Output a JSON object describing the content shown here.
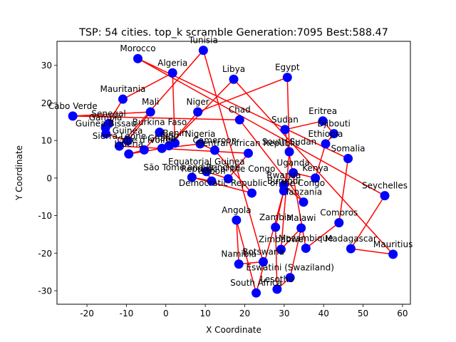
{
  "chart_data": {
    "type": "scatter",
    "title": "TSP: 54 cities. top_k scramble Generation:7095 Best:588.47",
    "xlabel": "X Coordinate",
    "ylabel": "Y Coordinate",
    "xlim": [
      -27.6,
      62.0
    ],
    "ylim": [
      -33.6,
      36.4
    ],
    "xticks": [
      -20,
      -10,
      0,
      10,
      20,
      30,
      40,
      50,
      60
    ],
    "yticks": [
      -30,
      -20,
      -10,
      0,
      10,
      20,
      30
    ],
    "grid": false,
    "route_color": "#ff0000",
    "point_color": "#0000ff",
    "cities": [
      {
        "name": "Morocco",
        "x": -7.1,
        "y": 31.8
      },
      {
        "name": "Algeria",
        "x": 1.7,
        "y": 28.0
      },
      {
        "name": "Tunisia",
        "x": 9.5,
        "y": 34.0
      },
      {
        "name": "Libya",
        "x": 17.2,
        "y": 26.3
      },
      {
        "name": "Egypt",
        "x": 30.8,
        "y": 26.8
      },
      {
        "name": "Mauritania",
        "x": -10.9,
        "y": 21.0
      },
      {
        "name": "Cabo Verde",
        "x": -23.6,
        "y": 16.5
      },
      {
        "name": "Mali",
        "x": -3.9,
        "y": 17.6
      },
      {
        "name": "Niger",
        "x": 8.1,
        "y": 17.6
      },
      {
        "name": "Chad",
        "x": 18.7,
        "y": 15.5
      },
      {
        "name": "Sudan",
        "x": 30.2,
        "y": 12.9
      },
      {
        "name": "Eritrea",
        "x": 39.8,
        "y": 15.2
      },
      {
        "name": "Djibouti",
        "x": 42.6,
        "y": 11.8
      },
      {
        "name": "Ethiopia",
        "x": 40.5,
        "y": 9.1
      },
      {
        "name": "Somalia",
        "x": 46.2,
        "y": 5.2
      },
      {
        "name": "Senegal",
        "x": -14.5,
        "y": 14.5
      },
      {
        "name": "Gambia",
        "x": -15.3,
        "y": 13.4
      },
      {
        "name": "Guinea-Bissau",
        "x": -15.2,
        "y": 11.8
      },
      {
        "name": "Guinea",
        "x": -9.7,
        "y": 9.9
      },
      {
        "name": "Sierra Leone",
        "x": -11.8,
        "y": 8.5
      },
      {
        "name": "Liberia",
        "x": -9.4,
        "y": 6.4
      },
      {
        "name": "Cote d'Ivoire",
        "x": -5.5,
        "y": 7.5
      },
      {
        "name": "Burkina Faso",
        "x": -1.6,
        "y": 12.2
      },
      {
        "name": "Ghana",
        "x": -1.0,
        "y": 7.9
      },
      {
        "name": "Togo",
        "x": 0.8,
        "y": 8.6
      },
      {
        "name": "Benin",
        "x": 2.3,
        "y": 9.3
      },
      {
        "name": "Nigeria",
        "x": 8.7,
        "y": 9.1
      },
      {
        "name": "Cameroon",
        "x": 12.4,
        "y": 7.4
      },
      {
        "name": "Central African Republic",
        "x": 20.9,
        "y": 6.6
      },
      {
        "name": "South Sudan",
        "x": 31.3,
        "y": 7.0
      },
      {
        "name": "Uganda",
        "x": 32.3,
        "y": 1.4
      },
      {
        "name": "Kenya",
        "x": 37.9,
        "y": 0.0
      },
      {
        "name": "Rwanda",
        "x": 29.9,
        "y": -1.9
      },
      {
        "name": "Burundi",
        "x": 29.9,
        "y": -3.4
      },
      {
        "name": "Tanzania",
        "x": 34.9,
        "y": -6.4
      },
      {
        "name": "Democratic Republic of the Congo",
        "x": 21.8,
        "y": -4.0
      },
      {
        "name": "Republic of the Congo",
        "x": 15.8,
        "y": -0.2
      },
      {
        "name": "Gabon",
        "x": 11.6,
        "y": -0.8
      },
      {
        "name": "Equatorial Guinea",
        "x": 10.3,
        "y": 1.7
      },
      {
        "name": "Sao Tome and Principe",
        "x": 6.6,
        "y": 0.2
      },
      {
        "name": "Angola",
        "x": 17.9,
        "y": -11.2
      },
      {
        "name": "Namibia",
        "x": 18.5,
        "y": -22.9
      },
      {
        "name": "Zambia",
        "x": 27.8,
        "y": -13.1
      },
      {
        "name": "Malawi",
        "x": 34.3,
        "y": -13.3
      },
      {
        "name": "Mozambique",
        "x": 35.5,
        "y": -18.7
      },
      {
        "name": "Zimbabwe",
        "x": 29.2,
        "y": -19.0
      },
      {
        "name": "Botswana",
        "x": 24.7,
        "y": -22.3
      },
      {
        "name": "Eswatini",
        "x": 31.5,
        "y": -26.5
      },
      {
        "name": "Lesotho",
        "x": 28.2,
        "y": -29.6
      },
      {
        "name": "South Africa",
        "x": 22.9,
        "y": -30.6
      },
      {
        "name": "Comoros",
        "x": 43.9,
        "y": -11.9
      },
      {
        "name": "Madagascar",
        "x": 46.9,
        "y": -18.8
      },
      {
        "name": "Mauritius",
        "x": 57.6,
        "y": -20.3
      },
      {
        "name": "Seychelles",
        "x": 55.5,
        "y": -4.7
      }
    ],
    "route_order": [
      0,
      53,
      51,
      52,
      3,
      24,
      8,
      4,
      29,
      45,
      43,
      47,
      48,
      42,
      33,
      49,
      40,
      41,
      46,
      2,
      19,
      28,
      36,
      38,
      37,
      39,
      35,
      27,
      26,
      23,
      20,
      21,
      22,
      25,
      1,
      5,
      16,
      15,
      17,
      18,
      7,
      6,
      9,
      34,
      32,
      30,
      31,
      13,
      12,
      11,
      10,
      44,
      50,
      14,
      0
    ],
    "labels": [
      {
        "city": 0,
        "text": "Morocco"
      },
      {
        "city": 1,
        "text": "Algeria"
      },
      {
        "city": 2,
        "text": "Tunisia"
      },
      {
        "city": 3,
        "text": "Libya"
      },
      {
        "city": 4,
        "text": "Egypt"
      },
      {
        "city": 5,
        "text": "Mauritania"
      },
      {
        "city": 6,
        "text": "Cabo Verde"
      },
      {
        "city": 7,
        "text": "Mali"
      },
      {
        "city": 8,
        "text": "Niger"
      },
      {
        "city": 9,
        "text": "Chad"
      },
      {
        "city": 10,
        "text": "Sudan"
      },
      {
        "city": 11,
        "text": "Eritrea"
      },
      {
        "city": 12,
        "text": "Djibouti"
      },
      {
        "city": 13,
        "text": "Ethiopia"
      },
      {
        "city": 14,
        "text": "Somalia"
      },
      {
        "city": 15,
        "text": "Senegal"
      },
      {
        "city": 16,
        "text": "Gambia"
      },
      {
        "city": 17,
        "text": "Guinea-Bissau"
      },
      {
        "city": 18,
        "text": "Guinea"
      },
      {
        "city": 19,
        "text": "Sierra Leone"
      },
      {
        "city": 20,
        "text": "Liberia"
      },
      {
        "city": 21,
        "text": "Côte d'Ivoire"
      },
      {
        "city": 22,
        "text": "Burkina Faso"
      },
      {
        "city": 23,
        "text": "Ghana"
      },
      {
        "city": 24,
        "text": "Togo"
      },
      {
        "city": 25,
        "text": "Benin"
      },
      {
        "city": 26,
        "text": "Nigeria"
      },
      {
        "city": 27,
        "text": "Cameroon"
      },
      {
        "city": 28,
        "text": "Central African Republic"
      },
      {
        "city": 29,
        "text": "South Sudan"
      },
      {
        "city": 30,
        "text": "Uganda"
      },
      {
        "city": 31,
        "text": "Kenya"
      },
      {
        "city": 32,
        "text": "Rwanda"
      },
      {
        "city": 33,
        "text": "Burundi"
      },
      {
        "city": 34,
        "text": "Tanzania"
      },
      {
        "city": 35,
        "text": "Democratic Republic of the Congo"
      },
      {
        "city": 36,
        "text": "Republic of the Congo"
      },
      {
        "city": 37,
        "text": "Gabon"
      },
      {
        "city": 38,
        "text": "Equatorial Guinea"
      },
      {
        "city": 39,
        "text": "São Tomé and Príncipe"
      },
      {
        "city": 40,
        "text": "Angola"
      },
      {
        "city": 41,
        "text": "Namibia"
      },
      {
        "city": 42,
        "text": "Zambia"
      },
      {
        "city": 43,
        "text": "Malawi"
      },
      {
        "city": 44,
        "text": "Mozambique"
      },
      {
        "city": 45,
        "text": "Zimbabwe"
      },
      {
        "city": 46,
        "text": "Botswana"
      },
      {
        "city": 47,
        "text": "Eswatini (Swaziland)"
      },
      {
        "city": 48,
        "text": "Lesotho"
      },
      {
        "city": 49,
        "text": "South Africa"
      },
      {
        "city": 50,
        "text": "Comoros"
      },
      {
        "city": 51,
        "text": "Madagascar"
      },
      {
        "city": 52,
        "text": "Mauritius"
      },
      {
        "city": 53,
        "text": "Seychelles"
      }
    ]
  }
}
